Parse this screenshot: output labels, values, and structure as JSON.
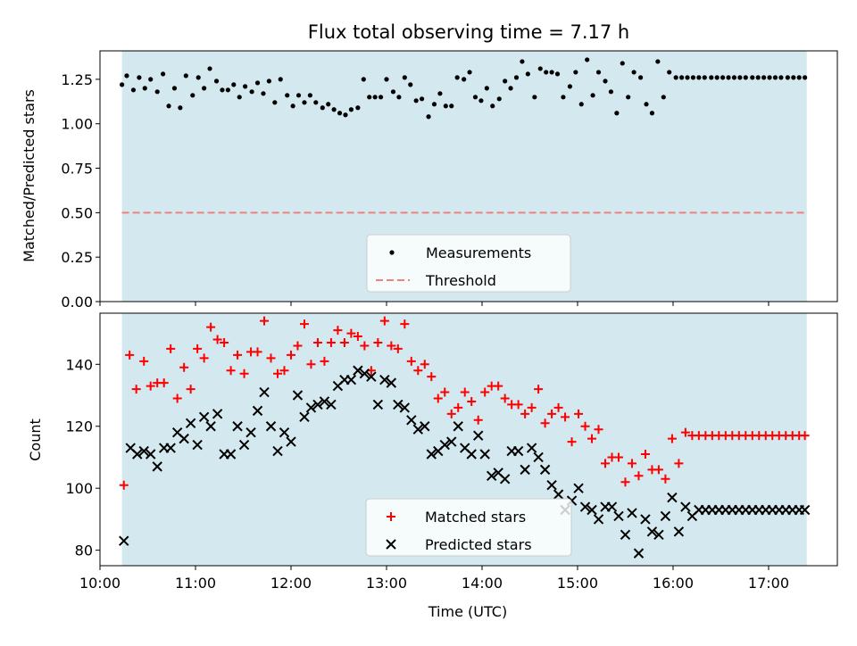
{
  "title": "Flux total observing time = 7.17 h",
  "colors": {
    "shade": "#d3e9ef",
    "measurement": "#000000",
    "threshold": "#f08080",
    "matched": "#ff0000",
    "predicted": "#000000"
  },
  "chart_data": [
    {
      "type": "scatter",
      "title": "Flux total observing time = 7.17 h",
      "ylabel": "Matched/Predicted stars",
      "xlim": [
        10.0,
        17.72
      ],
      "ylim": [
        0.0,
        1.41
      ],
      "shade_range": [
        10.23,
        17.4
      ],
      "yticks": [
        0.0,
        0.25,
        0.5,
        0.75,
        1.0,
        1.25
      ],
      "ytick_labels": [
        "0.00",
        "0.25",
        "0.50",
        "0.75",
        "1.00",
        "1.25"
      ],
      "threshold": 0.5,
      "legend": {
        "placement": "bottom-center",
        "entries": [
          "Measurements",
          "Threshold"
        ]
      },
      "series": [
        {
          "name": "Measurements",
          "marker": "dot",
          "x": [
            10.23,
            10.28,
            10.35,
            10.41,
            10.47,
            10.53,
            10.6,
            10.66,
            10.72,
            10.78,
            10.84,
            10.9,
            10.97,
            11.03,
            11.09,
            11.15,
            11.22,
            11.28,
            11.34,
            11.4,
            11.46,
            11.52,
            11.59,
            11.65,
            11.71,
            11.77,
            11.83,
            11.89,
            11.96,
            12.02,
            12.08,
            12.14,
            12.2,
            12.26,
            12.33,
            12.39,
            12.45,
            12.51,
            12.57,
            12.63,
            12.7,
            12.76,
            12.82,
            12.88,
            12.94,
            13.0,
            13.07,
            13.13,
            13.19,
            13.25,
            13.31,
            13.37,
            13.44,
            13.5,
            13.56,
            13.62,
            13.68,
            13.74,
            13.81,
            13.87,
            13.93,
            13.99,
            14.05,
            14.11,
            14.18,
            14.24,
            14.3,
            14.36,
            14.42,
            14.48,
            14.55,
            14.61,
            14.67,
            14.73,
            14.79,
            14.85,
            14.92,
            14.98,
            15.04,
            15.1,
            15.16,
            15.22,
            15.29,
            15.35,
            15.41,
            15.47,
            15.53,
            15.59,
            15.66,
            15.72,
            15.78,
            15.84,
            15.9,
            15.96,
            16.03,
            16.09,
            16.15,
            16.21,
            16.27,
            16.33,
            16.4,
            16.46,
            16.52,
            16.58,
            16.64,
            16.7,
            16.76,
            16.83,
            16.89,
            16.95,
            17.01,
            17.07,
            17.13,
            17.2,
            17.26,
            17.32,
            17.38
          ],
          "y": [
            1.22,
            1.27,
            1.19,
            1.26,
            1.2,
            1.25,
            1.18,
            1.28,
            1.1,
            1.2,
            1.09,
            1.27,
            1.16,
            1.26,
            1.2,
            1.31,
            1.24,
            1.19,
            1.19,
            1.22,
            1.15,
            1.21,
            1.18,
            1.23,
            1.17,
            1.24,
            1.12,
            1.25,
            1.16,
            1.1,
            1.16,
            1.12,
            1.16,
            1.12,
            1.09,
            1.11,
            1.08,
            1.06,
            1.05,
            1.08,
            1.09,
            1.25,
            1.15,
            1.15,
            1.15,
            1.25,
            1.18,
            1.15,
            1.26,
            1.22,
            1.13,
            1.14,
            1.04,
            1.11,
            1.17,
            1.1,
            1.1,
            1.26,
            1.25,
            1.29,
            1.15,
            1.13,
            1.2,
            1.1,
            1.14,
            1.24,
            1.2,
            1.26,
            1.35,
            1.28,
            1.15,
            1.31,
            1.29,
            1.29,
            1.28,
            1.15,
            1.21,
            1.29,
            1.11,
            1.36,
            1.16,
            1.29,
            1.24,
            1.18,
            1.06,
            1.34,
            1.15,
            1.29,
            1.26,
            1.11,
            1.06,
            1.35,
            1.15,
            1.29,
            1.26,
            1.26,
            1.26,
            1.26,
            1.26,
            1.26,
            1.26,
            1.26,
            1.26,
            1.26,
            1.26,
            1.26,
            1.26,
            1.26,
            1.26,
            1.26,
            1.26,
            1.26,
            1.26,
            1.26,
            1.26,
            1.26,
            1.26
          ]
        }
      ]
    },
    {
      "type": "scatter",
      "xlabel": "Time (UTC)",
      "ylabel": "Count",
      "xlim": [
        10.0,
        17.72
      ],
      "ylim": [
        75,
        156.5
      ],
      "shade_range": [
        10.23,
        17.4
      ],
      "yticks": [
        80,
        100,
        120,
        140
      ],
      "ytick_labels": [
        "80",
        "100",
        "120",
        "140"
      ],
      "xticks": [
        10,
        11,
        12,
        13,
        14,
        15,
        16,
        17
      ],
      "xtick_labels": [
        "10:00",
        "11:00",
        "12:00",
        "13:00",
        "14:00",
        "15:00",
        "16:00",
        "17:00"
      ],
      "legend": {
        "placement": "bottom-center",
        "entries": [
          "Matched stars",
          "Predicted stars"
        ]
      },
      "series": [
        {
          "name": "Matched stars",
          "marker": "plus",
          "x": [
            10.25,
            10.31,
            10.38,
            10.46,
            10.53,
            10.6,
            10.67,
            10.74,
            10.81,
            10.88,
            10.95,
            11.02,
            11.09,
            11.16,
            11.23,
            11.3,
            11.37,
            11.44,
            11.51,
            11.58,
            11.65,
            11.72,
            11.79,
            11.86,
            11.93,
            12.0,
            12.07,
            12.14,
            12.21,
            12.28,
            12.35,
            12.42,
            12.49,
            12.56,
            12.63,
            12.7,
            12.77,
            12.84,
            12.91,
            12.98,
            13.05,
            13.12,
            13.19,
            13.26,
            13.33,
            13.4,
            13.47,
            13.54,
            13.61,
            13.68,
            13.75,
            13.82,
            13.89,
            13.96,
            14.03,
            14.1,
            14.17,
            14.24,
            14.31,
            14.38,
            14.45,
            14.52,
            14.59,
            14.66,
            14.73,
            14.8,
            14.87,
            14.94,
            15.01,
            15.08,
            15.15,
            15.22,
            15.29,
            15.36,
            15.43,
            15.5,
            15.57,
            15.64,
            15.71,
            15.78,
            15.85,
            15.92,
            15.99,
            16.06,
            16.13,
            16.2,
            16.27,
            16.34,
            16.41,
            16.48,
            16.55,
            16.62,
            16.69,
            16.76,
            16.83,
            16.9,
            16.97,
            17.04,
            17.11,
            17.18,
            17.25,
            17.32,
            17.38
          ],
          "y": [
            101,
            143,
            132,
            141,
            133,
            134,
            134,
            145,
            129,
            139,
            132,
            145,
            142,
            152,
            148,
            147,
            138,
            143,
            137,
            144,
            144,
            154,
            142,
            137,
            138,
            143,
            146,
            153,
            140,
            147,
            141,
            147,
            151,
            147,
            150,
            149,
            146,
            138,
            147,
            154,
            146,
            145,
            153,
            141,
            138,
            140,
            136,
            129,
            131,
            124,
            126,
            131,
            128,
            122,
            131,
            133,
            133,
            129,
            127,
            127,
            124,
            126,
            132,
            121,
            124,
            126,
            123,
            115,
            124,
            120,
            116,
            119,
            108,
            110,
            110,
            102,
            108,
            104,
            111,
            106,
            106,
            103,
            116,
            108,
            118,
            117,
            117,
            117,
            117,
            117,
            117,
            117,
            117,
            117,
            117,
            117,
            117,
            117,
            117,
            117,
            117,
            117,
            117
          ]
        },
        {
          "name": "Predicted stars",
          "marker": "x",
          "x": [
            10.25,
            10.32,
            10.39,
            10.46,
            10.53,
            10.6,
            10.67,
            10.74,
            10.81,
            10.88,
            10.95,
            11.02,
            11.09,
            11.16,
            11.23,
            11.3,
            11.37,
            11.44,
            11.51,
            11.58,
            11.65,
            11.72,
            11.79,
            11.86,
            11.93,
            12.0,
            12.07,
            12.14,
            12.21,
            12.28,
            12.35,
            12.42,
            12.49,
            12.56,
            12.63,
            12.7,
            12.77,
            12.84,
            12.91,
            12.98,
            13.05,
            13.12,
            13.19,
            13.26,
            13.33,
            13.4,
            13.47,
            13.54,
            13.61,
            13.68,
            13.75,
            13.82,
            13.89,
            13.96,
            14.03,
            14.1,
            14.17,
            14.24,
            14.31,
            14.38,
            14.45,
            14.52,
            14.59,
            14.66,
            14.73,
            14.8,
            14.87,
            14.94,
            15.01,
            15.08,
            15.15,
            15.22,
            15.29,
            15.36,
            15.43,
            15.5,
            15.57,
            15.64,
            15.71,
            15.78,
            15.85,
            15.92,
            15.99,
            16.06,
            16.13,
            16.2,
            16.27,
            16.34,
            16.41,
            16.48,
            16.55,
            16.62,
            16.69,
            16.76,
            16.83,
            16.9,
            16.97,
            17.04,
            17.11,
            17.18,
            17.25,
            17.32,
            17.38
          ],
          "y": [
            83,
            113,
            111,
            112,
            111,
            107,
            113,
            113,
            118,
            116,
            121,
            114,
            123,
            120,
            124,
            111,
            111,
            120,
            114,
            118,
            125,
            131,
            120,
            112,
            118,
            115,
            130,
            123,
            126,
            127,
            128,
            127,
            133,
            135,
            135,
            138,
            137,
            136,
            127,
            135,
            134,
            127,
            126,
            122,
            119,
            120,
            111,
            112,
            114,
            115,
            120,
            113,
            111,
            117,
            111,
            104,
            105,
            103,
            112,
            112,
            106,
            113,
            110,
            106,
            101,
            98,
            93,
            96,
            100,
            94,
            93,
            90,
            94,
            94,
            91,
            85,
            92,
            79,
            90,
            86,
            85,
            91,
            97,
            86,
            94,
            91,
            93,
            93,
            93,
            93,
            93,
            93,
            93,
            93,
            93,
            93,
            93,
            93,
            93,
            93,
            93,
            93,
            93
          ]
        }
      ]
    }
  ]
}
